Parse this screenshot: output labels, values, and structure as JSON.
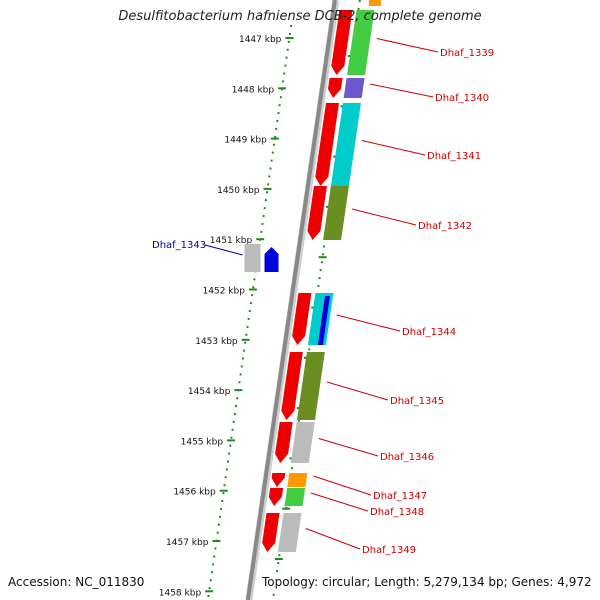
{
  "title": "Desulfitobacterium hafniense DCB-2, complete genome",
  "accession": "Accession: NC_011830",
  "topology": "Topology: circular; Length: 5,279,134 bp; Genes: 4,972",
  "colors": {
    "backbone": "#888888",
    "ruler": "#228822",
    "cds_strand": "#ee0000",
    "label_red": "#cc0000",
    "label_blue": "#000099",
    "highlight_blue": "#0000dd",
    "cog_green": "#44cc44",
    "cog_olive": "#6b8e23",
    "cog_cyan": "#00cccc",
    "cog_purple": "#6a5acd",
    "cog_grey": "#bbbbbb",
    "cog_orange": "#ff9900"
  },
  "ruler": {
    "unit": "kbp",
    "ticks": [
      "1447 kbp",
      "1448 kbp",
      "1449 kbp",
      "1450 kbp",
      "1451 kbp",
      "1452 kbp",
      "1453 kbp",
      "1454 kbp",
      "1455 kbp",
      "1456 kbp",
      "1457 kbp",
      "1458 kbp"
    ]
  },
  "genes": [
    {
      "name": "Dhaf_1339",
      "cog": "green"
    },
    {
      "name": "Dhaf_1340",
      "cog": "purple"
    },
    {
      "name": "Dhaf_1341",
      "cog": "cyan"
    },
    {
      "name": "Dhaf_1342",
      "cog": "olive"
    },
    {
      "name": "Dhaf_1343",
      "cog": "grey",
      "highlight": true
    },
    {
      "name": "Dhaf_1344",
      "cog": "cyan"
    },
    {
      "name": "Dhaf_1345",
      "cog": "olive"
    },
    {
      "name": "Dhaf_1346",
      "cog": "grey"
    },
    {
      "name": "Dhaf_1347",
      "cog": "orange"
    },
    {
      "name": "Dhaf_1348",
      "cog": "green"
    },
    {
      "name": "Dhaf_1349",
      "cog": "grey"
    }
  ]
}
